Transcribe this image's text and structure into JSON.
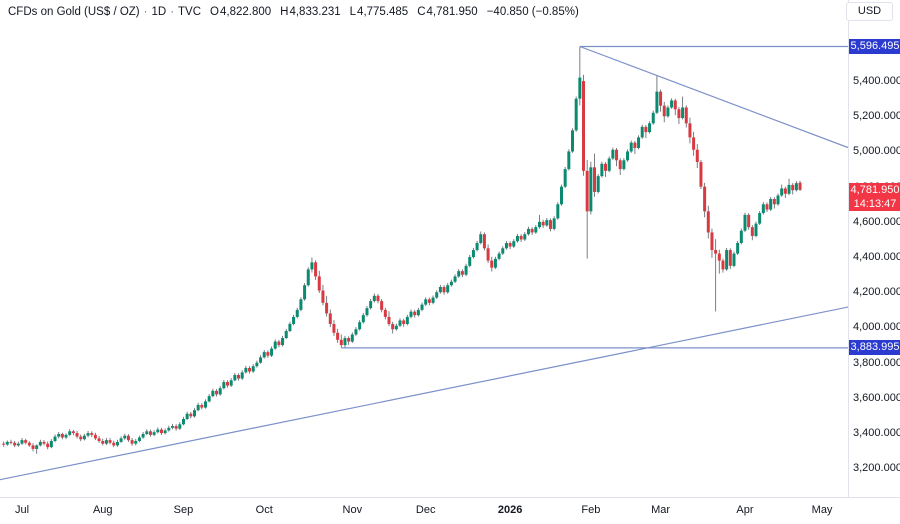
{
  "header": {
    "symbol": "CFDs on Gold (US$ / OZ)",
    "dot": "·",
    "interval": "1D",
    "exchange": "TVC",
    "ohlc": {
      "o_label": "O",
      "o": "4,822.800",
      "h_label": "H",
      "h": "4,833.231",
      "l_label": "L",
      "l": "4,775.485",
      "c_label": "C",
      "c": "4,781.950"
    },
    "change": "−40.850 (−0.85%)",
    "currency_button": "USD"
  },
  "price_axis": {
    "ticks": [
      {
        "label": "5,400.000",
        "price": 5400
      },
      {
        "label": "5,200.000",
        "price": 5200
      },
      {
        "label": "5,000.000",
        "price": 5000
      },
      {
        "label": "4,800.000",
        "price": 4800
      },
      {
        "label": "4,600.000",
        "price": 4600
      },
      {
        "label": "4,400.000",
        "price": 4400
      },
      {
        "label": "4,200.000",
        "price": 4200
      },
      {
        "label": "4,000.000",
        "price": 4000
      },
      {
        "label": "3,800.000",
        "price": 3800
      },
      {
        "label": "3,600.000",
        "price": 3600
      },
      {
        "label": "3,400.000",
        "price": 3400
      },
      {
        "label": "3,200.000",
        "price": 3200
      }
    ],
    "badges": [
      {
        "kind": "level-high",
        "label": "5,596.495",
        "price": 5596.495,
        "color": "#2b3bcf"
      },
      {
        "kind": "last-price",
        "label": "4,781.950",
        "countdown": "14:13:47",
        "price": 4781.95,
        "color": "#f23645"
      },
      {
        "kind": "level-low",
        "label": "3,883.995",
        "price": 3883.995,
        "color": "#2b3bcf"
      }
    ]
  },
  "time_axis": {
    "labels": [
      {
        "label": "Jul",
        "i": 5
      },
      {
        "label": "Aug",
        "i": 27
      },
      {
        "label": "Sep",
        "i": 49
      },
      {
        "label": "Oct",
        "i": 71
      },
      {
        "label": "Nov",
        "i": 95
      },
      {
        "label": "Dec",
        "i": 115
      },
      {
        "label": "2026",
        "i": 138,
        "bold": true
      },
      {
        "label": "Feb",
        "i": 160
      },
      {
        "label": "Mar",
        "i": 179
      },
      {
        "label": "Apr",
        "i": 202
      },
      {
        "label": "May",
        "i": 223
      }
    ]
  },
  "chart_data": {
    "type": "candlestick",
    "instrument": "CFDs on Gold (US$ / OZ)",
    "interval": "1D",
    "source": "TVC",
    "visible_price_range": [
      3200,
      5596.495
    ],
    "visible_time_range": [
      "Jul 2025",
      "May 2026"
    ],
    "grid": false,
    "last": {
      "open": 4822.8,
      "high": 4833.231,
      "low": 4775.485,
      "close": 4781.95,
      "change": -40.85,
      "change_pct": -0.85
    },
    "key_levels": {
      "high_ray": 5596.495,
      "low_ray": 3883.995
    },
    "up_color": "#0b8a70",
    "down_color": "#d83a41",
    "wick_color": "#6b6f75",
    "drawing_color": "#7b90c9",
    "candles": [
      [
        3340,
        3352,
        3322,
        3335
      ],
      [
        3335,
        3358,
        3328,
        3350
      ],
      [
        3350,
        3362,
        3336,
        3345
      ],
      [
        3345,
        3356,
        3320,
        3330
      ],
      [
        3330,
        3352,
        3322,
        3340
      ],
      [
        3340,
        3372,
        3334,
        3360
      ],
      [
        3360,
        3368,
        3336,
        3345
      ],
      [
        3345,
        3354,
        3322,
        3330
      ],
      [
        3330,
        3342,
        3296,
        3310
      ],
      [
        3310,
        3336,
        3282,
        3330
      ],
      [
        3330,
        3362,
        3324,
        3350
      ],
      [
        3350,
        3360,
        3330,
        3340
      ],
      [
        3340,
        3352,
        3308,
        3320
      ],
      [
        3320,
        3366,
        3314,
        3355
      ],
      [
        3355,
        3392,
        3348,
        3380
      ],
      [
        3380,
        3406,
        3370,
        3395
      ],
      [
        3395,
        3402,
        3364,
        3375
      ],
      [
        3375,
        3398,
        3366,
        3390
      ],
      [
        3390,
        3422,
        3382,
        3410
      ],
      [
        3410,
        3418,
        3388,
        3400
      ],
      [
        3400,
        3412,
        3370,
        3380
      ],
      [
        3380,
        3392,
        3354,
        3365
      ],
      [
        3365,
        3396,
        3358,
        3385
      ],
      [
        3385,
        3412,
        3376,
        3400
      ],
      [
        3400,
        3410,
        3378,
        3390
      ],
      [
        3390,
        3402,
        3360,
        3370
      ],
      [
        3370,
        3384,
        3344,
        3355
      ],
      [
        3355,
        3368,
        3330,
        3340
      ],
      [
        3340,
        3372,
        3332,
        3360
      ],
      [
        3360,
        3371,
        3336,
        3345
      ],
      [
        3345,
        3357,
        3320,
        3330
      ],
      [
        3330,
        3362,
        3322,
        3350
      ],
      [
        3350,
        3382,
        3344,
        3370
      ],
      [
        3370,
        3396,
        3362,
        3385
      ],
      [
        3385,
        3394,
        3350,
        3360
      ],
      [
        3360,
        3372,
        3328,
        3340
      ],
      [
        3340,
        3367,
        3330,
        3355
      ],
      [
        3355,
        3386,
        3348,
        3375
      ],
      [
        3375,
        3406,
        3368,
        3395
      ],
      [
        3395,
        3422,
        3388,
        3410
      ],
      [
        3410,
        3420,
        3380,
        3390
      ],
      [
        3390,
        3416,
        3382,
        3405
      ],
      [
        3405,
        3432,
        3398,
        3420
      ],
      [
        3420,
        3430,
        3390,
        3400
      ],
      [
        3400,
        3426,
        3392,
        3415
      ],
      [
        3415,
        3442,
        3408,
        3430
      ],
      [
        3430,
        3452,
        3422,
        3440
      ],
      [
        3440,
        3450,
        3414,
        3425
      ],
      [
        3425,
        3462,
        3418,
        3450
      ],
      [
        3450,
        3492,
        3444,
        3480
      ],
      [
        3480,
        3522,
        3474,
        3510
      ],
      [
        3510,
        3520,
        3484,
        3495
      ],
      [
        3495,
        3542,
        3488,
        3530
      ],
      [
        3530,
        3572,
        3524,
        3560
      ],
      [
        3560,
        3570,
        3534,
        3545
      ],
      [
        3545,
        3592,
        3538,
        3580
      ],
      [
        3580,
        3622,
        3574,
        3610
      ],
      [
        3610,
        3652,
        3604,
        3640
      ],
      [
        3640,
        3650,
        3608,
        3620
      ],
      [
        3620,
        3667,
        3612,
        3655
      ],
      [
        3655,
        3702,
        3648,
        3690
      ],
      [
        3690,
        3700,
        3658,
        3670
      ],
      [
        3670,
        3712,
        3662,
        3700
      ],
      [
        3700,
        3742,
        3694,
        3730
      ],
      [
        3730,
        3740,
        3698,
        3710
      ],
      [
        3710,
        3757,
        3702,
        3745
      ],
      [
        3745,
        3782,
        3738,
        3770
      ],
      [
        3770,
        3780,
        3738,
        3750
      ],
      [
        3750,
        3792,
        3742,
        3780
      ],
      [
        3780,
        3812,
        3772,
        3800
      ],
      [
        3800,
        3842,
        3794,
        3830
      ],
      [
        3830,
        3872,
        3824,
        3860
      ],
      [
        3860,
        3870,
        3828,
        3840
      ],
      [
        3840,
        3892,
        3832,
        3880
      ],
      [
        3880,
        3932,
        3874,
        3920
      ],
      [
        3920,
        3930,
        3888,
        3900
      ],
      [
        3900,
        3952,
        3892,
        3940
      ],
      [
        3940,
        3992,
        3934,
        3980
      ],
      [
        3980,
        4032,
        3974,
        4020
      ],
      [
        4020,
        4072,
        4012,
        4060
      ],
      [
        4060,
        4112,
        4052,
        4100
      ],
      [
        4100,
        4172,
        4092,
        4160
      ],
      [
        4160,
        4252,
        4152,
        4240
      ],
      [
        4240,
        4342,
        4232,
        4330
      ],
      [
        4330,
        4398,
        4312,
        4370
      ],
      [
        4370,
        4382,
        4270,
        4290
      ],
      [
        4290,
        4322,
        4196,
        4210
      ],
      [
        4210,
        4242,
        4126,
        4140
      ],
      [
        4140,
        4180,
        4062,
        4080
      ],
      [
        4080,
        4102,
        4002,
        4020
      ],
      [
        4020,
        4042,
        3952,
        3970
      ],
      [
        3970,
        3992,
        3912,
        3930
      ],
      [
        3930,
        3960,
        3884,
        3900
      ],
      [
        3900,
        3952,
        3886,
        3940
      ],
      [
        3940,
        3950,
        3902,
        3920
      ],
      [
        3920,
        3972,
        3912,
        3960
      ],
      [
        3960,
        4002,
        3952,
        3990
      ],
      [
        3990,
        4042,
        3982,
        4030
      ],
      [
        4030,
        4082,
        4022,
        4070
      ],
      [
        4070,
        4122,
        4062,
        4110
      ],
      [
        4110,
        4162,
        4102,
        4150
      ],
      [
        4150,
        4193,
        4142,
        4180
      ],
      [
        4180,
        4190,
        4138,
        4150
      ],
      [
        4150,
        4162,
        4086,
        4100
      ],
      [
        4100,
        4112,
        4046,
        4060
      ],
      [
        4060,
        4092,
        4008,
        4020
      ],
      [
        4020,
        4032,
        3966,
        3990
      ],
      [
        3990,
        4022,
        3982,
        4010
      ],
      [
        4010,
        4052,
        4002,
        4040
      ],
      [
        4040,
        4050,
        4004,
        4020
      ],
      [
        4020,
        4072,
        4012,
        4060
      ],
      [
        4060,
        4102,
        4052,
        4090
      ],
      [
        4090,
        4100,
        4056,
        4070
      ],
      [
        4070,
        4112,
        4062,
        4100
      ],
      [
        4100,
        4142,
        4092,
        4130
      ],
      [
        4130,
        4172,
        4122,
        4160
      ],
      [
        4160,
        4170,
        4126,
        4140
      ],
      [
        4140,
        4182,
        4132,
        4170
      ],
      [
        4170,
        4212,
        4162,
        4200
      ],
      [
        4200,
        4242,
        4192,
        4230
      ],
      [
        4230,
        4240,
        4186,
        4200
      ],
      [
        4200,
        4252,
        4192,
        4240
      ],
      [
        4240,
        4272,
        4232,
        4260
      ],
      [
        4260,
        4302,
        4252,
        4290
      ],
      [
        4290,
        4332,
        4282,
        4320
      ],
      [
        4320,
        4330,
        4286,
        4300
      ],
      [
        4300,
        4362,
        4292,
        4350
      ],
      [
        4350,
        4412,
        4342,
        4400
      ],
      [
        4400,
        4452,
        4392,
        4440
      ],
      [
        4440,
        4492,
        4432,
        4480
      ],
      [
        4480,
        4545,
        4472,
        4530
      ],
      [
        4530,
        4540,
        4438,
        4450
      ],
      [
        4450,
        4472,
        4366,
        4380
      ],
      [
        4380,
        4402,
        4318,
        4340
      ],
      [
        4340,
        4402,
        4332,
        4390
      ],
      [
        4390,
        4432,
        4382,
        4420
      ],
      [
        4420,
        4462,
        4412,
        4450
      ],
      [
        4450,
        4492,
        4442,
        4480
      ],
      [
        4480,
        4490,
        4446,
        4460
      ],
      [
        4460,
        4502,
        4452,
        4490
      ],
      [
        4490,
        4532,
        4482,
        4520
      ],
      [
        4520,
        4530,
        4486,
        4500
      ],
      [
        4500,
        4542,
        4492,
        4530
      ],
      [
        4530,
        4572,
        4522,
        4560
      ],
      [
        4560,
        4570,
        4526,
        4540
      ],
      [
        4540,
        4582,
        4532,
        4570
      ],
      [
        4570,
        4640,
        4562,
        4600
      ],
      [
        4600,
        4612,
        4566,
        4580
      ],
      [
        4580,
        4622,
        4572,
        4610
      ],
      [
        4610,
        4620,
        4546,
        4560
      ],
      [
        4560,
        4632,
        4552,
        4620
      ],
      [
        4620,
        4712,
        4612,
        4700
      ],
      [
        4700,
        4812,
        4692,
        4800
      ],
      [
        4800,
        4912,
        4792,
        4900
      ],
      [
        4900,
        5012,
        4892,
        5000
      ],
      [
        5000,
        5132,
        4992,
        5120
      ],
      [
        5120,
        5312,
        5112,
        5300
      ],
      [
        5300,
        5596,
        5262,
        5420
      ],
      [
        5400,
        5436,
        4862,
        4890
      ],
      [
        4890,
        4952,
        4392,
        4660
      ],
      [
        4660,
        4942,
        4642,
        4910
      ],
      [
        4910,
        4988,
        4742,
        4770
      ],
      [
        4770,
        4872,
        4762,
        4860
      ],
      [
        4860,
        4942,
        4852,
        4930
      ],
      [
        4930,
        4940,
        4856,
        4890
      ],
      [
        4890,
        4972,
        4882,
        4960
      ],
      [
        4960,
        5022,
        4952,
        5010
      ],
      [
        5010,
        5020,
        4916,
        4950
      ],
      [
        4950,
        4962,
        4866,
        4900
      ],
      [
        4900,
        4962,
        4892,
        4950
      ],
      [
        4950,
        5012,
        4942,
        5000
      ],
      [
        5000,
        5062,
        4992,
        5050
      ],
      [
        5050,
        5060,
        4986,
        5020
      ],
      [
        5020,
        5092,
        5012,
        5080
      ],
      [
        5080,
        5152,
        5072,
        5140
      ],
      [
        5140,
        5150,
        5076,
        5110
      ],
      [
        5110,
        5172,
        5102,
        5160
      ],
      [
        5160,
        5232,
        5152,
        5220
      ],
      [
        5220,
        5430,
        5212,
        5340
      ],
      [
        5340,
        5352,
        5226,
        5260
      ],
      [
        5260,
        5282,
        5166,
        5200
      ],
      [
        5200,
        5262,
        5192,
        5250
      ],
      [
        5250,
        5302,
        5242,
        5290
      ],
      [
        5290,
        5300,
        5206,
        5240
      ],
      [
        5240,
        5252,
        5156,
        5190
      ],
      [
        5190,
        5312,
        5182,
        5250
      ],
      [
        5250,
        5262,
        5136,
        5160
      ],
      [
        5160,
        5192,
        5046,
        5080
      ],
      [
        5080,
        5112,
        4976,
        5010
      ],
      [
        5010,
        5042,
        4906,
        4940
      ],
      [
        4940,
        4952,
        4786,
        4800
      ],
      [
        4800,
        4822,
        4626,
        4660
      ],
      [
        4660,
        4692,
        4506,
        4540
      ],
      [
        4540,
        4562,
        4396,
        4440
      ],
      [
        4440,
        4502,
        4091,
        4420
      ],
      [
        4420,
        4442,
        4306,
        4380
      ],
      [
        4380,
        4392,
        4312,
        4330
      ],
      [
        4330,
        4452,
        4322,
        4440
      ],
      [
        4440,
        4450,
        4332,
        4350
      ],
      [
        4350,
        4432,
        4342,
        4420
      ],
      [
        4420,
        4492,
        4412,
        4480
      ],
      [
        4480,
        4562,
        4472,
        4550
      ],
      [
        4550,
        4652,
        4542,
        4640
      ],
      [
        4640,
        4650,
        4556,
        4570
      ],
      [
        4570,
        4582,
        4496,
        4520
      ],
      [
        4520,
        4602,
        4512,
        4590
      ],
      [
        4590,
        4662,
        4582,
        4650
      ],
      [
        4650,
        4712,
        4642,
        4700
      ],
      [
        4700,
        4710,
        4656,
        4670
      ],
      [
        4670,
        4742,
        4662,
        4730
      ],
      [
        4730,
        4740,
        4676,
        4700
      ],
      [
        4700,
        4762,
        4692,
        4750
      ],
      [
        4750,
        4812,
        4742,
        4790
      ],
      [
        4790,
        4800,
        4736,
        4760
      ],
      [
        4760,
        4845,
        4752,
        4810
      ],
      [
        4810,
        4820,
        4756,
        4780
      ],
      [
        4780,
        4832,
        4772,
        4820
      ],
      [
        4822.8,
        4833.231,
        4775.485,
        4781.95
      ]
    ],
    "drawings": {
      "ray_high": {
        "type": "horizontal-ray",
        "price": 5596.495,
        "from_i": 157
      },
      "ray_low": {
        "type": "horizontal-ray",
        "price": 3883.995,
        "from_i": 92
      },
      "trend_down": {
        "type": "trendline",
        "from": {
          "i": 157,
          "price": 5596.495
        },
        "to": {
          "i": 231,
          "price": 5015
        }
      },
      "trend_up": {
        "type": "trendline",
        "from": {
          "i": -1,
          "price": 3135
        },
        "to": {
          "i": 231,
          "price": 4120
        }
      }
    }
  }
}
